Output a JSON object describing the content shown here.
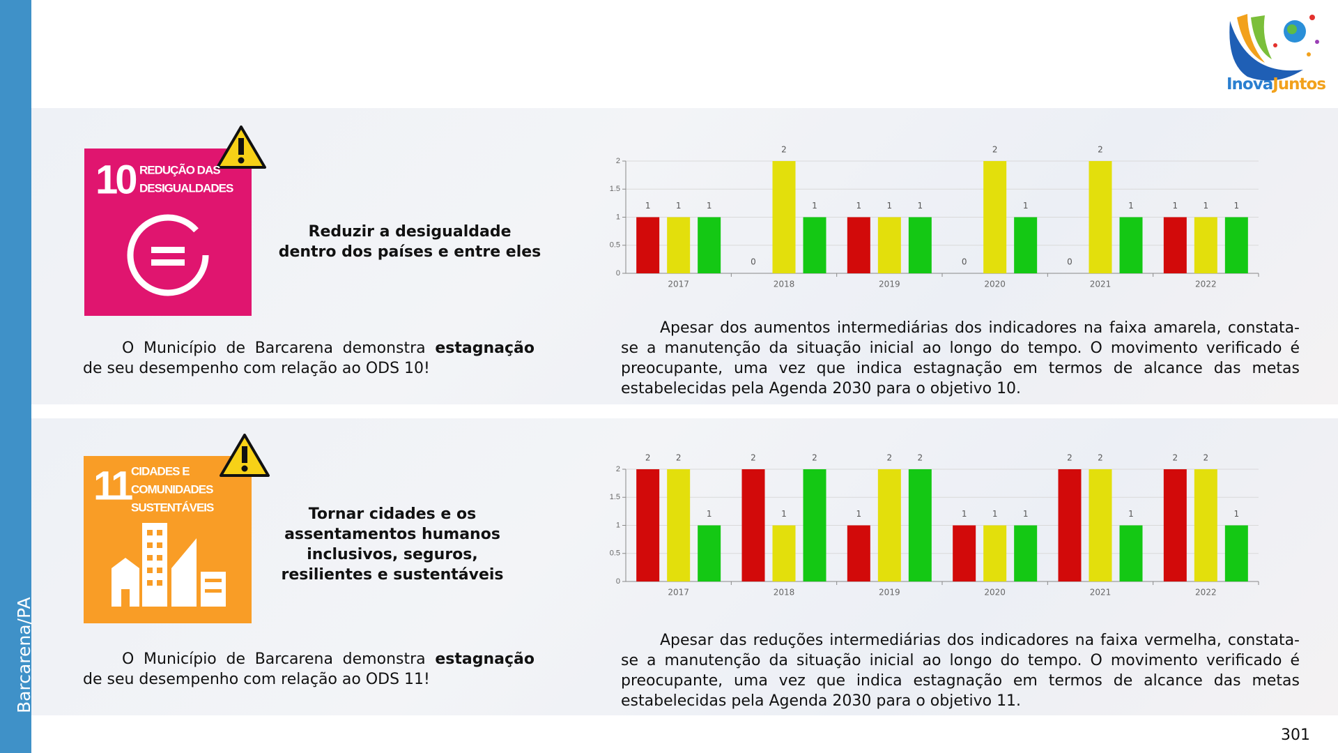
{
  "sidebar": "Barcarena/PA",
  "logo": {
    "part1": "Inova",
    "part2": "Juntos"
  },
  "sections": [
    {
      "goal_number": "10",
      "goal_name": [
        "REDUÇÃO DAS",
        "DESIGUALDADES"
      ],
      "goal_title": "Reduzir a desigualdade dentro dos países e entre eles",
      "summary": {
        "before": "O Município de Barcarena demonstra ",
        "bold": "estagnação",
        "after": " de seu desempenho com relação ao ODS 10!"
      },
      "analysis": "Apesar dos aumentos intermediárias dos indicadores na faixa amarela, constata-se a manutenção da situação inicial ao longo do tempo. O movimento verificado é preocupante, uma vez que indica estagnação em termos de alcance das metas estabelecidas pela Agenda 2030 para o objetivo 10."
    },
    {
      "goal_number": "11",
      "goal_name": [
        "CIDADES E",
        "COMUNIDADES",
        "SUSTENTÁVEIS"
      ],
      "goal_title": "Tornar cidades e os assentamentos humanos inclusivos, seguros, resilientes e sustentáveis",
      "summary": {
        "before": "O Município de Barcarena demonstra ",
        "bold": "estagnação",
        "after": " de seu desempenho com relação ao ODS 11!"
      },
      "analysis": "Apesar das reduções intermediárias dos indicadores na faixa vermelha, constata-se a manutenção da situação inicial ao longo do tempo. O movimento verificado é preocupante, uma vez que indica estagnação em termos de alcance das metas estabelecidas pela Agenda 2030 para o objetivo 11."
    }
  ],
  "chart_data": [
    {
      "type": "bar",
      "categories": [
        "2017",
        "2018",
        "2019",
        "2020",
        "2021",
        "2022"
      ],
      "series": [
        {
          "color": "#d20a0a",
          "values": [
            1,
            0,
            1,
            0,
            0,
            1
          ]
        },
        {
          "color": "#e3df0c",
          "values": [
            1,
            2,
            1,
            2,
            2,
            1
          ]
        },
        {
          "color": "#14c814",
          "values": [
            1,
            1,
            1,
            1,
            1,
            1
          ]
        }
      ],
      "ylim": [
        0,
        2
      ],
      "yticks": [
        0,
        0.5,
        1,
        1.5,
        2
      ],
      "grid": true
    },
    {
      "type": "bar",
      "categories": [
        "2017",
        "2018",
        "2019",
        "2020",
        "2021",
        "2022"
      ],
      "series": [
        {
          "color": "#d20a0a",
          "values": [
            2,
            2,
            1,
            1,
            2,
            2
          ]
        },
        {
          "color": "#e3df0c",
          "values": [
            2,
            1,
            2,
            1,
            2,
            2
          ]
        },
        {
          "color": "#14c814",
          "values": [
            1,
            2,
            2,
            1,
            1,
            1
          ]
        }
      ],
      "ylim": [
        0,
        2
      ],
      "yticks": [
        0,
        0.5,
        1,
        1.5,
        2
      ],
      "grid": true
    }
  ],
  "page_number": "301"
}
